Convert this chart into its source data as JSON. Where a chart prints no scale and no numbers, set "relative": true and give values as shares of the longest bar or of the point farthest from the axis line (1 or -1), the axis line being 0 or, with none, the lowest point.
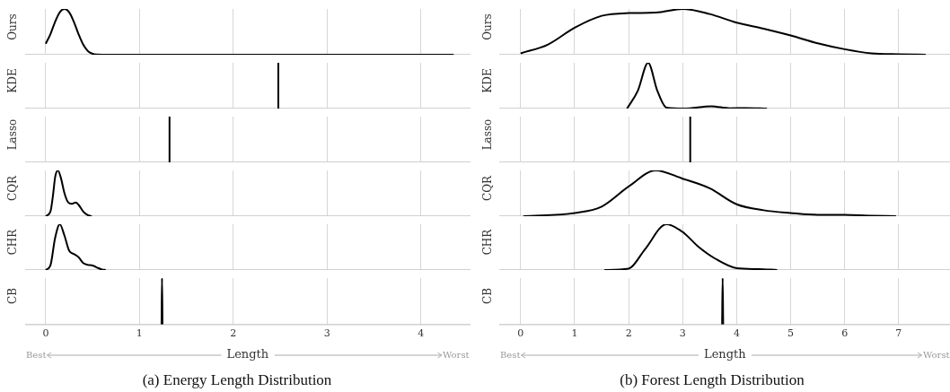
{
  "chart_data": [
    {
      "type": "line",
      "ylabel": "Ours",
      "relative": true,
      "x": [
        0,
        0.05,
        0.1,
        0.15,
        0.2,
        0.25,
        0.3,
        0.35,
        0.4,
        0.45,
        0.5,
        0.55,
        0.6,
        1,
        2,
        3,
        4,
        4.35
      ],
      "values": [
        0.24,
        0.45,
        0.72,
        0.93,
        1,
        0.93,
        0.72,
        0.45,
        0.22,
        0.08,
        0.02,
        0.003,
        0,
        0,
        0,
        0,
        0,
        0
      ],
      "color": "#000000",
      "xlim": [
        -0.21,
        4.52
      ],
      "xticks": [
        0,
        1,
        2,
        3,
        4
      ],
      "grid": "x",
      "tick_labels": false,
      "marker": "none"
    },
    {
      "type": "line",
      "ylabel": "KDE",
      "relative": true,
      "x": [
        2.48,
        2.48
      ],
      "values": [
        0,
        1
      ],
      "color": "#000000",
      "xlim": [
        -0.21,
        4.52
      ],
      "xticks": [
        0,
        1,
        2,
        3,
        4
      ],
      "grid": "x",
      "tick_labels": false,
      "marker": "none"
    },
    {
      "type": "line",
      "ylabel": "Lasso",
      "relative": true,
      "x": [
        1.32,
        1.32
      ],
      "values": [
        0,
        1
      ],
      "color": "#000000",
      "xlim": [
        -0.21,
        4.52
      ],
      "xticks": [
        0,
        1,
        2,
        3,
        4
      ],
      "grid": "x",
      "tick_labels": false,
      "marker": "none"
    },
    {
      "type": "line",
      "ylabel": "CQR",
      "relative": true,
      "x": [
        0,
        0.05,
        0.08,
        0.1,
        0.13,
        0.16,
        0.2,
        0.24,
        0.28,
        0.32,
        0.35,
        0.4,
        0.45,
        0.49
      ],
      "values": [
        0,
        0.1,
        0.5,
        0.85,
        1,
        0.85,
        0.5,
        0.3,
        0.27,
        0.3,
        0.25,
        0.1,
        0.02,
        0
      ],
      "color": "#000000",
      "xlim": [
        -0.21,
        4.52
      ],
      "xticks": [
        0,
        1,
        2,
        3,
        4
      ],
      "grid": "x",
      "tick_labels": false,
      "marker": "none"
    },
    {
      "type": "line",
      "ylabel": "CHR",
      "relative": true,
      "x": [
        0,
        0.05,
        0.1,
        0.15,
        0.2,
        0.25,
        0.3,
        0.35,
        0.4,
        0.45,
        0.5,
        0.55,
        0.6,
        0.64
      ],
      "values": [
        0,
        0.1,
        0.7,
        1,
        0.75,
        0.42,
        0.35,
        0.28,
        0.15,
        0.11,
        0.1,
        0.05,
        0.01,
        0
      ],
      "color": "#000000",
      "xlim": [
        -0.21,
        4.52
      ],
      "xticks": [
        0,
        1,
        2,
        3,
        4
      ],
      "grid": "x",
      "tick_labels": false,
      "marker": "none"
    },
    {
      "type": "line",
      "ylabel": "CB",
      "relative": true,
      "x": [
        1.235,
        1.24,
        1.245
      ],
      "values": [
        0,
        1,
        0
      ],
      "color": "#000000",
      "xlim": [
        -0.21,
        4.52
      ],
      "xticks": [
        0,
        1,
        2,
        3,
        4
      ],
      "grid": "x",
      "tick_labels": "x",
      "marker": "none",
      "xlabel": "Length",
      "annotations": [
        "Best",
        "Worst",
        "(a) Energy Length Distribution"
      ]
    },
    {
      "type": "line",
      "ylabel": "Ours",
      "relative": true,
      "x": [
        0,
        0.5,
        1,
        1.5,
        2,
        2.5,
        3,
        3.5,
        4,
        4.5,
        5,
        5.5,
        6,
        6.5,
        7,
        7.5
      ],
      "values": [
        0.03,
        0.22,
        0.59,
        0.85,
        0.91,
        0.92,
        1,
        0.89,
        0.7,
        0.57,
        0.42,
        0.25,
        0.12,
        0.03,
        0.01,
        0
      ],
      "color": "#000000",
      "xlim": [
        -0.38,
        7.95
      ],
      "xticks": [
        0,
        1,
        2,
        3,
        4,
        5,
        6,
        7
      ],
      "grid": "x",
      "tick_labels": false,
      "marker": "none"
    },
    {
      "type": "line",
      "ylabel": "KDE",
      "relative": true,
      "x": [
        1.97,
        2.17,
        2.36,
        2.53,
        2.7,
        3.03,
        3.53,
        3.87,
        4.17,
        4.56
      ],
      "values": [
        0,
        0.39,
        1,
        0.39,
        0.02,
        0,
        0.05,
        0.005,
        0.01,
        0
      ],
      "color": "#000000",
      "xlim": [
        -0.38,
        7.95
      ],
      "xticks": [
        0,
        1,
        2,
        3,
        4,
        5,
        6,
        7
      ],
      "grid": "x",
      "tick_labels": false,
      "marker": "none"
    },
    {
      "type": "line",
      "ylabel": "Lasso",
      "relative": true,
      "x": [
        3.14,
        3.14
      ],
      "values": [
        0,
        1
      ],
      "color": "#000000",
      "xlim": [
        -0.38,
        7.95
      ],
      "xticks": [
        0,
        1,
        2,
        3,
        4,
        5,
        6,
        7
      ],
      "grid": "x",
      "tick_labels": false,
      "marker": "none"
    },
    {
      "type": "line",
      "ylabel": "CQR",
      "relative": true,
      "x": [
        0.05,
        1,
        1.5,
        2,
        2.5,
        3,
        3.5,
        4,
        4.5,
        5,
        5.5,
        6,
        6.5,
        6.95
      ],
      "values": [
        0,
        0.07,
        0.21,
        0.65,
        1,
        0.82,
        0.61,
        0.26,
        0.13,
        0.07,
        0.03,
        0.03,
        0.01,
        0
      ],
      "color": "#000000",
      "xlim": [
        -0.38,
        7.95
      ],
      "xticks": [
        0,
        1,
        2,
        3,
        4,
        5,
        6,
        7
      ],
      "grid": "x",
      "tick_labels": false,
      "marker": "none"
    },
    {
      "type": "line",
      "ylabel": "CHR",
      "relative": true,
      "x": [
        1.55,
        2,
        2.3,
        2.7,
        3,
        3.3,
        3.6,
        4,
        4.4,
        4.75
      ],
      "values": [
        0,
        0.03,
        0.45,
        1,
        0.83,
        0.5,
        0.25,
        0.04,
        0.02,
        0
      ],
      "color": "#000000",
      "xlim": [
        -0.38,
        7.95
      ],
      "xticks": [
        0,
        1,
        2,
        3,
        4,
        5,
        6,
        7
      ],
      "grid": "x",
      "tick_labels": false,
      "marker": "none"
    },
    {
      "type": "line",
      "ylabel": "CB",
      "relative": true,
      "x": [
        3.73,
        3.74,
        3.75
      ],
      "values": [
        0,
        1,
        0
      ],
      "color": "#000000",
      "xlim": [
        -0.38,
        7.95
      ],
      "xticks": [
        0,
        1,
        2,
        3,
        4,
        5,
        6,
        7
      ],
      "grid": "x",
      "tick_labels": "x",
      "marker": "none",
      "xlabel": "Length",
      "annotations": [
        "Best",
        "Worst",
        "(b) Forest Length Distribution"
      ]
    }
  ]
}
